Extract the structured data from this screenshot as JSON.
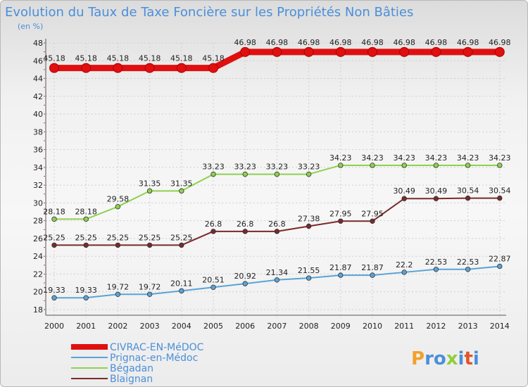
{
  "chart_data": {
    "type": "line",
    "title": "Evolution du Taux de Taxe Foncière sur les Propriétés Non Bâties",
    "unit_label": "(en %)",
    "x": [
      "2000",
      "2001",
      "2002",
      "2003",
      "2004",
      "2005",
      "2006",
      "2007",
      "2008",
      "2009",
      "2010",
      "2011",
      "2012",
      "2013",
      "2014"
    ],
    "ylim": [
      18,
      48
    ],
    "yticks": [
      18,
      20,
      22,
      24,
      26,
      28,
      30,
      32,
      34,
      36,
      38,
      40,
      42,
      44,
      46,
      48
    ],
    "grid": true,
    "legend_position": "bottom-left",
    "series": [
      {
        "name": "CIVRAC-EN-MéDOC",
        "color": "#e01010",
        "values": [
          45.18,
          45.18,
          45.18,
          45.18,
          45.18,
          45.18,
          46.98,
          46.98,
          46.98,
          46.98,
          46.98,
          46.98,
          46.98,
          46.98,
          46.98
        ]
      },
      {
        "name": "Prignac-en-Médoc",
        "color": "#5ba3d6",
        "values": [
          19.33,
          19.33,
          19.72,
          19.72,
          20.11,
          20.51,
          20.92,
          21.34,
          21.55,
          21.87,
          21.87,
          22.2,
          22.53,
          22.53,
          22.87
        ]
      },
      {
        "name": "Bégadan",
        "color": "#8fd14f",
        "values": [
          28.18,
          28.18,
          29.58,
          31.35,
          31.35,
          33.23,
          33.23,
          33.23,
          33.23,
          34.23,
          34.23,
          34.23,
          34.23,
          34.23,
          34.23
        ]
      },
      {
        "name": "Blaignan",
        "color": "#7a2a2a",
        "values": [
          25.25,
          25.25,
          25.25,
          25.25,
          25.25,
          26.8,
          26.8,
          26.8,
          27.38,
          27.95,
          27.95,
          30.49,
          30.49,
          30.54,
          30.54
        ]
      }
    ]
  },
  "logo": {
    "text": "Proxiti"
  }
}
